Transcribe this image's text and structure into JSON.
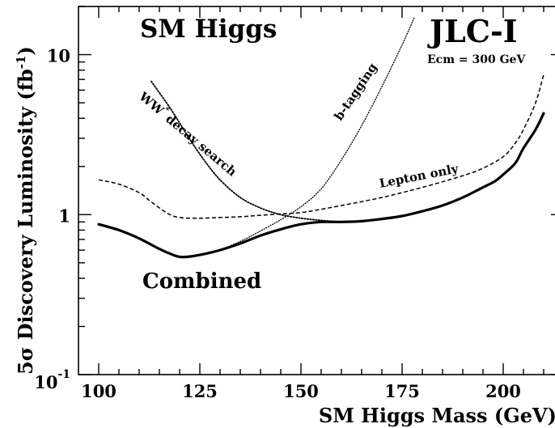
{
  "chart_data": {
    "type": "line",
    "title": "SM Higgs",
    "experiment": "JLC-I",
    "energy_label": "Ecm = 300 GeV",
    "xlabel": "SM Higgs Mass (GeV)",
    "ylabel": "5σ Discovery Luminosity (fb",
    "ylabel_sup": "-1",
    "ylabel_close": ")",
    "xlim": [
      95,
      215
    ],
    "ylim": [
      0.1,
      20
    ],
    "yscale": "log",
    "xticks": [
      100,
      125,
      150,
      175,
      200
    ],
    "xtick_labels": [
      "100",
      "125",
      "150",
      "175",
      "200"
    ],
    "yticks": [
      {
        "value": 0.1,
        "base": "10",
        "exp": "-1"
      },
      {
        "value": 1,
        "base": "1",
        "exp": ""
      },
      {
        "value": 10,
        "base": "10",
        "exp": ""
      }
    ],
    "grid": false,
    "series": [
      {
        "name": "Combined",
        "style": "solid",
        "x": [
          100,
          105,
          110,
          115,
          118,
          120,
          122,
          125,
          130,
          135,
          140,
          145,
          150,
          155,
          160,
          165,
          170,
          175,
          180,
          185,
          190,
          195,
          198,
          200,
          203,
          205,
          208,
          210
        ],
        "y": [
          0.87,
          0.8,
          0.71,
          0.61,
          0.565,
          0.545,
          0.545,
          0.56,
          0.6,
          0.66,
          0.74,
          0.81,
          0.87,
          0.9,
          0.9,
          0.91,
          0.94,
          0.98,
          1.05,
          1.14,
          1.28,
          1.48,
          1.62,
          1.78,
          2.1,
          2.6,
          3.4,
          4.3
        ]
      },
      {
        "name": "Lepton only",
        "style": "dashed",
        "x": [
          100,
          105,
          110,
          113,
          117,
          120,
          125,
          130,
          135,
          140,
          145,
          150,
          155,
          160,
          170,
          180,
          190,
          195,
          200,
          203,
          205,
          208,
          210
        ],
        "y": [
          1.65,
          1.55,
          1.37,
          1.2,
          1.02,
          0.96,
          0.95,
          0.96,
          0.97,
          0.99,
          1.01,
          1.03,
          1.08,
          1.14,
          1.28,
          1.48,
          1.75,
          1.95,
          2.3,
          2.8,
          3.4,
          5.0,
          7.5
        ]
      },
      {
        "name": "WW* decay search",
        "style": "dotted",
        "x": [
          113,
          118,
          122,
          126,
          130,
          135,
          140,
          145,
          150,
          155,
          160
        ],
        "y": [
          6.8,
          4.5,
          3.1,
          2.2,
          1.65,
          1.28,
          1.1,
          1.0,
          0.95,
          0.92,
          0.9
        ]
      },
      {
        "name": "b-tagging",
        "style": "dotted-fine",
        "x": [
          130,
          135,
          140,
          145,
          150,
          155,
          160,
          165,
          170,
          175,
          178
        ],
        "y": [
          0.6,
          0.68,
          0.79,
          0.93,
          1.12,
          1.45,
          2.2,
          3.6,
          6.3,
          11.5,
          17
        ]
      }
    ],
    "annotations": [
      {
        "text": "Combined"
      },
      {
        "text": "Lepton only"
      },
      {
        "text": "WW",
        "sup": "*",
        "rest": "decay search"
      },
      {
        "text": "b-tagging"
      }
    ]
  }
}
